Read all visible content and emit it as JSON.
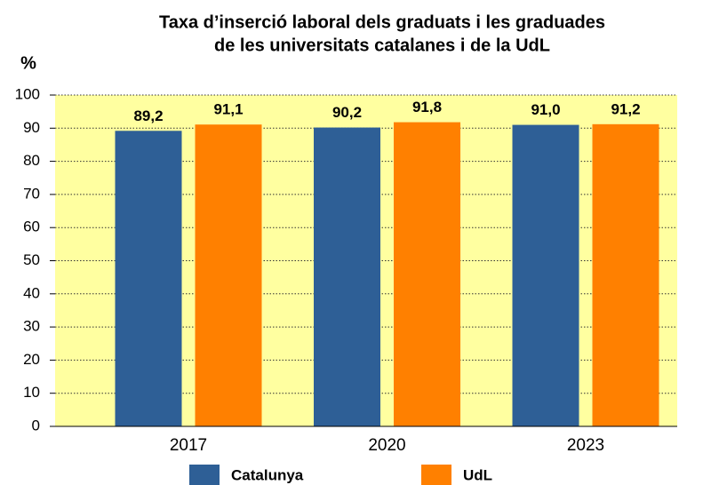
{
  "chart_data": {
    "type": "bar",
    "title": [
      "Taxa d’inserció laboral dels graduats i les graduades",
      "de les universitats catalanes i de la UdL"
    ],
    "y_label": "%",
    "categories": [
      "2017",
      "2020",
      "2023"
    ],
    "series": [
      {
        "name": "Catalunya",
        "color": "#2e5f96",
        "values": [
          89.2,
          90.2,
          91.0
        ],
        "value_labels": [
          "89,2",
          "90,2",
          "91,0"
        ]
      },
      {
        "name": "UdL",
        "color": "#ff8000",
        "values": [
          91.1,
          91.8,
          91.2
        ],
        "value_labels": [
          "91,1",
          "91,8",
          "91,2"
        ]
      }
    ],
    "ylim": [
      0,
      100
    ],
    "yticks": [
      0,
      10,
      20,
      30,
      40,
      50,
      60,
      70,
      80,
      90,
      100
    ],
    "grid": true,
    "background": "#ffffa0",
    "legend": "bottom"
  }
}
